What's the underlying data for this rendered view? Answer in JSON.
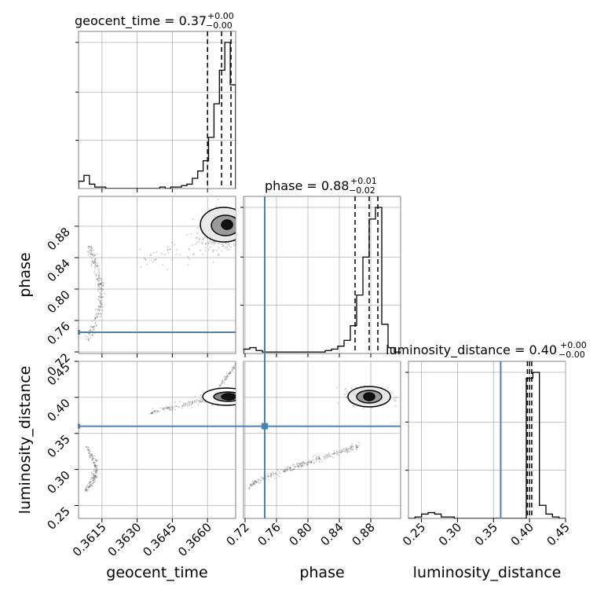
{
  "chart_data": {
    "type": "corner",
    "parameters": [
      "geocent_time",
      "phase",
      "luminosity_distance"
    ],
    "truths": {
      "phase": 0.745,
      "luminosity_distance": 0.36
    },
    "truth_color": "#4682b4",
    "axis_labels": {
      "x": [
        "geocent_time",
        "phase",
        "luminosity_distance"
      ],
      "y": [
        "phase",
        "luminosity_distance"
      ]
    },
    "titles": [
      {
        "param": "geocent_time",
        "text": "geocent_time = 0.37",
        "sup": "+0.00",
        "sub": "−0.00"
      },
      {
        "param": "phase",
        "text": "phase = 0.88",
        "sup": "+0.01",
        "sub": "−0.02"
      },
      {
        "param": "luminosity_distance",
        "text": "luminosity_distance = 0.40",
        "sup": "+0.00",
        "sub": "−0.00"
      }
    ],
    "ticks": {
      "geocent_time": {
        "labels": [
          "0.3615",
          "0.3630",
          "0.3645",
          "0.3660"
        ],
        "values": [
          0.3615,
          0.363,
          0.3645,
          0.366
        ]
      },
      "phase": {
        "labels": [
          "0.72",
          "0.76",
          "0.80",
          "0.84",
          "0.88"
        ],
        "values": [
          0.72,
          0.76,
          0.8,
          0.84,
          0.88
        ]
      },
      "luminosity_distance": {
        "labels": [
          "0.25",
          "0.30",
          "0.35",
          "0.40",
          "0.45"
        ],
        "values": [
          0.25,
          0.3,
          0.35,
          0.4,
          0.45
        ]
      }
    },
    "ranges": {
      "geocent_time": [
        0.3605,
        0.3672
      ],
      "phase": [
        0.718,
        0.918
      ],
      "luminosity_distance": [
        0.232,
        0.45
      ]
    },
    "histograms": {
      "geocent_time": {
        "counts": [
          5,
          9,
          3,
          1,
          1,
          0,
          0,
          0,
          0,
          0,
          0,
          0,
          0,
          0,
          0,
          1,
          0,
          1,
          1,
          2,
          3,
          7,
          12,
          19,
          35,
          58,
          81,
          100,
          71
        ],
        "quantiles": [
          0.366,
          0.3666,
          0.367
        ]
      },
      "phase": {
        "counts": [
          3,
          4,
          2,
          1,
          1,
          1,
          1,
          1,
          1,
          1,
          1,
          1,
          1,
          2,
          3,
          5,
          9,
          19,
          40,
          66,
          92,
          100,
          20,
          4,
          1
        ],
        "quantiles": [
          0.86,
          0.878,
          0.889
        ]
      },
      "luminosity_distance": {
        "counts": [
          0,
          1,
          3,
          4,
          3,
          1,
          1,
          0,
          0,
          0,
          0,
          0,
          0,
          0,
          0,
          0,
          0,
          0,
          96,
          100,
          9,
          3,
          1,
          0
        ],
        "quantiles": [
          0.397,
          0.4,
          0.403
        ]
      }
    }
  }
}
